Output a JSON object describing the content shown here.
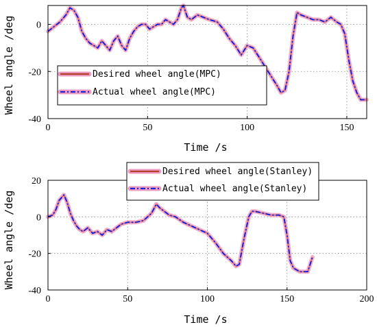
{
  "colors": {
    "desired": "#b5402a",
    "desired_halo": "#ec9ac0",
    "actual": "#1c22d6",
    "grid": "#888888"
  },
  "chart_data": [
    {
      "type": "line",
      "xlabel": "Time  /s",
      "ylabel": "Wheel angle  /deg",
      "xlim": [
        0,
        160
      ],
      "ylim": [
        -40,
        8
      ],
      "xticks": [
        0,
        50,
        100,
        150
      ],
      "yticks": [
        -40,
        -20,
        0
      ],
      "grid": true,
      "legend_position": "lower-left",
      "series": [
        {
          "name": "Desired wheel angle(MPC)",
          "style": "solid",
          "x": [
            0,
            3,
            6,
            9,
            11,
            13,
            15,
            17,
            19,
            21,
            23,
            25,
            27,
            29,
            31,
            33,
            35,
            37,
            39,
            41,
            43,
            45,
            47,
            49,
            51,
            53,
            55,
            57,
            59,
            61,
            63,
            65,
            67,
            68,
            70,
            72,
            75,
            78,
            81,
            85,
            88,
            91,
            94,
            97,
            100,
            103,
            106,
            109,
            112,
            115,
            117,
            119,
            121,
            123,
            125,
            127,
            130,
            133,
            136,
            139,
            142,
            145,
            147,
            149,
            151,
            153,
            155,
            157,
            160
          ],
          "y": [
            -3,
            -1,
            1,
            4,
            7,
            6,
            3,
            -3,
            -6,
            -8,
            -9,
            -10,
            -7,
            -9,
            -11,
            -7,
            -5,
            -9,
            -11,
            -6,
            -3,
            -1,
            0,
            0,
            -2,
            -1,
            0,
            0,
            2,
            1,
            0,
            2,
            7,
            8,
            3,
            2,
            4,
            3,
            2,
            1,
            -2,
            -6,
            -9,
            -13,
            -9,
            -10,
            -14,
            -18,
            -22,
            -26,
            -29,
            -28,
            -20,
            -5,
            5,
            4,
            3,
            2,
            2,
            1,
            3,
            1,
            0,
            -4,
            -15,
            -24,
            -29,
            -32,
            -32
          ]
        },
        {
          "name": "Actual wheel angle(MPC)",
          "style": "dashdot",
          "x": [
            0,
            3,
            6,
            9,
            11,
            13,
            15,
            17,
            19,
            21,
            23,
            25,
            27,
            29,
            31,
            33,
            35,
            37,
            39,
            41,
            43,
            45,
            47,
            49,
            51,
            53,
            55,
            57,
            59,
            61,
            63,
            65,
            67,
            68,
            70,
            72,
            75,
            78,
            81,
            85,
            88,
            91,
            94,
            97,
            100,
            103,
            106,
            109,
            112,
            115,
            117,
            119,
            121,
            123,
            125,
            127,
            130,
            133,
            136,
            139,
            142,
            145,
            147,
            149,
            151,
            153,
            155,
            157,
            160
          ],
          "y": [
            -3,
            -1,
            1,
            4,
            7,
            6,
            3,
            -3,
            -6,
            -8,
            -9,
            -10,
            -7,
            -9,
            -11,
            -7,
            -5,
            -9,
            -11,
            -6,
            -3,
            -1,
            0,
            0,
            -2,
            -1,
            0,
            0,
            2,
            1,
            0,
            2,
            7,
            8,
            3,
            2,
            4,
            3,
            2,
            1,
            -2,
            -6,
            -9,
            -13,
            -9,
            -10,
            -14,
            -18,
            -22,
            -26,
            -29,
            -28,
            -20,
            -5,
            5,
            4,
            3,
            2,
            2,
            1,
            3,
            1,
            0,
            -4,
            -15,
            -24,
            -29,
            -32,
            -32
          ]
        }
      ]
    },
    {
      "type": "line",
      "xlabel": "Time  /s",
      "ylabel": "Wheel angle  /deg",
      "xlim": [
        0,
        200
      ],
      "ylim": [
        -40,
        20
      ],
      "xticks": [
        0,
        50,
        100,
        150,
        200
      ],
      "yticks": [
        -40,
        -20,
        0,
        20
      ],
      "grid": true,
      "legend_position": "top-right",
      "series": [
        {
          "name": "Desired wheel angle(Stanley)",
          "style": "solid",
          "x": [
            0,
            3,
            5,
            7,
            9,
            10,
            12,
            14,
            16,
            18,
            20,
            22,
            25,
            28,
            31,
            34,
            37,
            40,
            43,
            46,
            50,
            55,
            60,
            65,
            68,
            70,
            73,
            76,
            80,
            85,
            90,
            95,
            100,
            105,
            110,
            115,
            118,
            120,
            123,
            126,
            128,
            130,
            135,
            140,
            145,
            148,
            150,
            152,
            154,
            156,
            158,
            160,
            163,
            166
          ],
          "y": [
            0,
            1,
            4,
            9,
            11,
            12,
            8,
            2,
            -2,
            -5,
            -7,
            -8,
            -6,
            -9,
            -8,
            -10,
            -7,
            -8,
            -6,
            -4,
            -3,
            -3,
            -2,
            2,
            7,
            5,
            3,
            1,
            0,
            -3,
            -5,
            -7,
            -9,
            -14,
            -20,
            -24,
            -27,
            -26,
            -12,
            0,
            3,
            3,
            2,
            1,
            1,
            0,
            -10,
            -24,
            -28,
            -29,
            -30,
            -30,
            -30,
            -22
          ]
        },
        {
          "name": "Actual wheel angle(Stanley)",
          "style": "dashdot",
          "x": [
            0,
            3,
            5,
            7,
            9,
            10,
            12,
            14,
            16,
            18,
            20,
            22,
            25,
            28,
            31,
            34,
            37,
            40,
            43,
            46,
            50,
            55,
            60,
            65,
            68,
            70,
            73,
            76,
            80,
            85,
            90,
            95,
            100,
            105,
            110,
            115,
            118,
            120,
            123,
            126,
            128,
            130,
            135,
            140,
            145,
            148,
            150,
            152,
            154,
            156,
            158,
            160,
            163,
            166
          ],
          "y": [
            0,
            1,
            4,
            9,
            11,
            12,
            8,
            2,
            -2,
            -5,
            -7,
            -8,
            -6,
            -9,
            -8,
            -10,
            -7,
            -8,
            -6,
            -4,
            -3,
            -3,
            -2,
            2,
            7,
            5,
            3,
            1,
            0,
            -3,
            -5,
            -7,
            -9,
            -14,
            -20,
            -24,
            -27,
            -26,
            -12,
            0,
            3,
            3,
            2,
            1,
            1,
            0,
            -10,
            -24,
            -28,
            -29,
            -30,
            -30,
            -30,
            -22
          ]
        }
      ]
    }
  ]
}
